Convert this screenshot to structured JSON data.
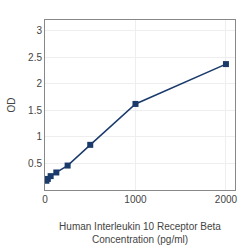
{
  "chart_data": {
    "type": "line",
    "x_label": "Human Interleukin 10 Receptor Beta\nConcentration (pg/ml)",
    "y_label": "OD",
    "x": [
      15.625,
      31.25,
      62.5,
      125,
      250,
      500,
      1000,
      2000
    ],
    "values": [
      0.174,
      0.208,
      0.261,
      0.33,
      0.46,
      0.85,
      1.62,
      2.37
    ],
    "color": "#1a3a6b",
    "marker": "square",
    "line_style": "solid",
    "xlim": [
      0,
      2100
    ],
    "xticks": [
      0,
      1000,
      2000
    ],
    "ylim": [
      0,
      3.2
    ],
    "yticks": [
      0.5,
      1,
      1.5,
      2,
      2.5,
      3
    ],
    "grid": true
  }
}
